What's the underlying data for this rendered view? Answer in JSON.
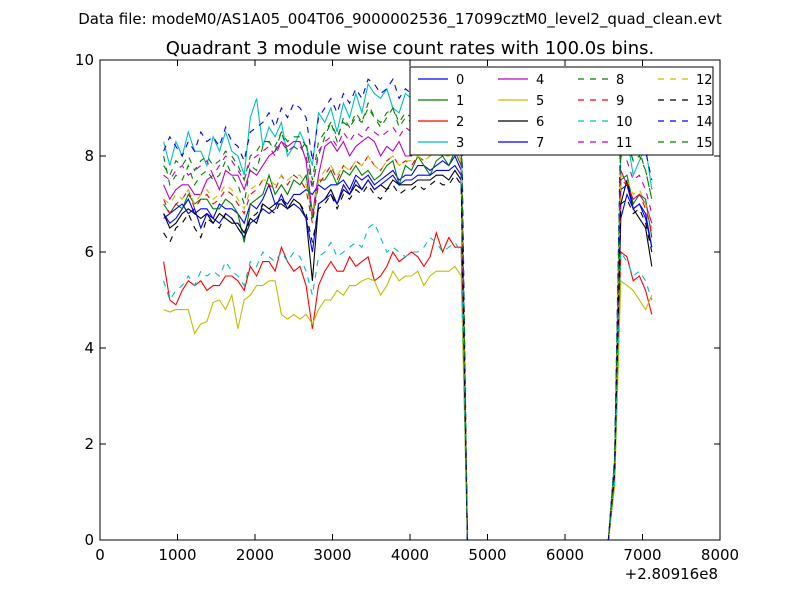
{
  "suptitle": "Data file: modeM0/AS1A05_004T06_9000002536_17099cztM0_level2_quad_clean.evt",
  "chart_data": {
    "type": "line",
    "title": "Quadrant 3 module wise count rates with 100.0s bins.",
    "xlabel": "",
    "ylabel": "",
    "x_offset_label": "+2.80916e8",
    "xlim": [
      0,
      8000
    ],
    "ylim": [
      0,
      10
    ],
    "x_ticks": [
      0,
      1000,
      2000,
      3000,
      4000,
      5000,
      6000,
      7000,
      8000
    ],
    "y_ticks": [
      0,
      2,
      4,
      6,
      8,
      10
    ],
    "grid": false,
    "legend_placement": "top-right",
    "legend_columns": 4,
    "x": [
      820,
      900,
      980,
      1060,
      1140,
      1220,
      1300,
      1380,
      1460,
      1540,
      1620,
      1700,
      1780,
      1860,
      1940,
      2020,
      2100,
      2180,
      2260,
      2340,
      2420,
      2500,
      2580,
      2660,
      2740,
      2820,
      2900,
      2980,
      3060,
      3140,
      3220,
      3300,
      3380,
      3460,
      3540,
      3620,
      3700,
      3780,
      3860,
      3940,
      4020,
      4100,
      4180,
      4260,
      4340,
      4420,
      4500,
      4580,
      4660,
      4740,
      6560,
      6640,
      6720,
      6800,
      6880,
      6960,
      7040,
      7120
    ],
    "series": [
      {
        "name": "0",
        "color": "#0000ff",
        "dash": "solid",
        "values": [
          6.8,
          6.6,
          6.7,
          6.9,
          7.1,
          6.8,
          6.9,
          6.9,
          6.7,
          7.0,
          6.9,
          6.9,
          6.8,
          6.6,
          7.0,
          6.9,
          7.1,
          7.4,
          7.0,
          7.1,
          7.0,
          7.2,
          7.2,
          7.3,
          7.2,
          7.4,
          7.3,
          7.4,
          7.4,
          7.5,
          7.3,
          7.6,
          7.5,
          7.6,
          7.4,
          7.5,
          7.6,
          7.7,
          7.5,
          7.6,
          7.6,
          7.8,
          7.8,
          7.7,
          7.8,
          7.9,
          7.8,
          8.0,
          7.7,
          0.0,
          0.0,
          1.5,
          6.7,
          7.2,
          6.9,
          7.0,
          6.7,
          6.1
        ]
      },
      {
        "name": "1",
        "color": "#008000",
        "dash": "solid",
        "values": [
          7.0,
          6.8,
          7.0,
          6.9,
          7.2,
          7.0,
          7.1,
          7.1,
          6.9,
          6.9,
          7.1,
          7.0,
          6.8,
          6.2,
          7.0,
          7.1,
          7.2,
          7.6,
          7.2,
          7.4,
          7.2,
          7.5,
          7.4,
          7.6,
          6.7,
          7.5,
          7.5,
          7.7,
          7.4,
          7.7,
          7.6,
          7.8,
          7.6,
          7.7,
          7.5,
          7.6,
          7.8,
          7.9,
          7.4,
          7.8,
          7.7,
          8.0,
          7.8,
          7.6,
          7.9,
          8.0,
          7.8,
          8.1,
          7.8,
          0.0,
          0.0,
          1.5,
          7.5,
          7.6,
          7.0,
          7.2,
          7.1,
          6.3
        ]
      },
      {
        "name": "2",
        "color": "#ff0000",
        "dash": "solid",
        "values": [
          5.8,
          5.0,
          4.9,
          5.2,
          5.4,
          5.3,
          5.4,
          5.2,
          5.3,
          5.3,
          5.5,
          5.5,
          5.4,
          5.2,
          5.7,
          5.5,
          5.8,
          5.8,
          5.6,
          6.1,
          5.8,
          5.6,
          5.7,
          5.3,
          4.4,
          5.3,
          5.6,
          5.8,
          5.6,
          5.6,
          5.9,
          5.7,
          5.8,
          5.9,
          5.4,
          5.5,
          5.7,
          6.0,
          5.8,
          5.9,
          6.0,
          5.9,
          5.7,
          5.9,
          6.4,
          6.0,
          6.3,
          6.1,
          6.1,
          0.0,
          0.0,
          1.2,
          6.0,
          5.9,
          5.4,
          5.5,
          5.2,
          4.7
        ]
      },
      {
        "name": "3",
        "color": "#00bfbf",
        "dash": "solid",
        "values": [
          8.3,
          7.8,
          8.3,
          8.0,
          8.5,
          8.1,
          8.1,
          7.8,
          8.4,
          8.1,
          8.5,
          8.1,
          8.0,
          7.6,
          8.8,
          9.2,
          8.2,
          8.6,
          8.4,
          8.7,
          8.0,
          8.2,
          8.5,
          8.2,
          7.8,
          8.9,
          8.7,
          9.0,
          8.5,
          9.1,
          8.8,
          9.3,
          8.9,
          9.5,
          9.3,
          9.2,
          9.4,
          9.0,
          8.9,
          9.3,
          9.2,
          8.8,
          8.7,
          9.0,
          8.8,
          8.6,
          8.7,
          8.9,
          8.5,
          0.0,
          0.0,
          1.7,
          8.1,
          8.4,
          7.6,
          7.9,
          8.2,
          7.3
        ]
      },
      {
        "name": "4",
        "color": "#bf00bf",
        "dash": "solid",
        "values": [
          7.4,
          7.1,
          7.3,
          7.4,
          7.4,
          7.2,
          7.2,
          7.5,
          7.6,
          7.3,
          7.7,
          7.6,
          7.6,
          7.3,
          7.7,
          7.6,
          7.8,
          8.0,
          8.1,
          8.3,
          8.2,
          8.3,
          8.3,
          7.9,
          6.8,
          7.6,
          8.2,
          8.3,
          8.1,
          8.3,
          8.0,
          8.2,
          8.3,
          8.4,
          8.3,
          8.0,
          8.2,
          8.1,
          8.3,
          8.0,
          8.0,
          8.2,
          8.2,
          8.3,
          8.4,
          8.2,
          8.3,
          8.5,
          8.0,
          0.0,
          0.0,
          1.6,
          7.7,
          7.4,
          7.1,
          7.2,
          7.0,
          6.6
        ]
      },
      {
        "name": "5",
        "color": "#bfbf00",
        "dash": "solid",
        "values": [
          4.8,
          4.75,
          4.8,
          4.8,
          4.8,
          4.3,
          4.5,
          4.55,
          4.95,
          5.0,
          4.8,
          5.1,
          4.4,
          5.0,
          5.1,
          5.3,
          5.3,
          5.4,
          5.4,
          4.7,
          4.6,
          4.7,
          4.6,
          4.7,
          4.5,
          4.8,
          5.0,
          5.0,
          5.2,
          5.1,
          5.3,
          5.3,
          5.4,
          5.45,
          5.4,
          5.1,
          5.3,
          5.6,
          5.4,
          5.5,
          5.5,
          5.6,
          5.3,
          5.5,
          5.6,
          5.6,
          5.6,
          5.7,
          5.5,
          0.0,
          0.0,
          1.1,
          5.4,
          5.3,
          5.2,
          5.0,
          4.8,
          5.1
        ]
      },
      {
        "name": "6",
        "color": "#000000",
        "dash": "solid",
        "values": [
          6.8,
          6.5,
          6.6,
          6.8,
          6.9,
          6.8,
          6.7,
          6.8,
          6.6,
          6.8,
          6.7,
          6.6,
          6.6,
          6.4,
          6.7,
          6.6,
          7.0,
          6.9,
          7.0,
          7.0,
          6.9,
          7.1,
          7.0,
          6.7,
          5.4,
          7.0,
          7.1,
          7.3,
          7.0,
          7.3,
          7.2,
          7.4,
          7.3,
          7.5,
          7.3,
          7.4,
          7.3,
          7.5,
          7.4,
          7.4,
          7.4,
          7.5,
          7.5,
          7.5,
          7.6,
          7.6,
          7.5,
          7.7,
          7.5,
          0.0,
          0.0,
          1.4,
          7.0,
          7.5,
          6.9,
          6.7,
          6.5,
          5.7
        ]
      },
      {
        "name": "7",
        "color": "#0000ff",
        "dash": "solid",
        "values": [
          6.7,
          6.8,
          6.9,
          7.0,
          6.8,
          6.9,
          6.5,
          6.8,
          6.7,
          6.6,
          6.8,
          6.7,
          6.5,
          6.3,
          6.6,
          6.7,
          6.9,
          6.8,
          6.9,
          7.2,
          6.9,
          7.0,
          6.9,
          6.7,
          6.0,
          7.0,
          7.1,
          7.2,
          7.0,
          7.4,
          7.2,
          7.5,
          7.3,
          7.5,
          7.3,
          7.4,
          7.5,
          7.6,
          7.4,
          7.5,
          7.5,
          7.6,
          7.6,
          7.6,
          7.7,
          7.7,
          7.7,
          7.8,
          7.6,
          0.0,
          0.0,
          1.4,
          7.3,
          7.4,
          6.9,
          7.0,
          6.8,
          6.1
        ]
      },
      {
        "name": "8",
        "color": "#008000",
        "dash": "dashed",
        "values": [
          8.0,
          7.4,
          7.6,
          7.5,
          7.8,
          7.4,
          7.6,
          7.7,
          7.5,
          7.6,
          7.9,
          7.6,
          7.4,
          7.0,
          7.8,
          7.7,
          8.2,
          8.3,
          8.1,
          8.5,
          8.1,
          8.2,
          8.1,
          8.3,
          7.4,
          8.0,
          8.4,
          8.7,
          8.3,
          8.8,
          8.6,
          8.9,
          8.7,
          9.1,
          8.8,
          8.7,
          8.9,
          9.0,
          8.6,
          8.8,
          8.7,
          8.9,
          8.7,
          8.9,
          9.0,
          8.8,
          8.9,
          9.1,
          8.7,
          0.0,
          0.0,
          1.6,
          8.4,
          8.3,
          7.9,
          8.0,
          7.7,
          7.1
        ]
      },
      {
        "name": "9",
        "color": "#ff0000",
        "dash": "dashed",
        "values": [
          7.1,
          6.8,
          7.0,
          7.1,
          7.3,
          6.9,
          7.1,
          7.2,
          7.0,
          7.1,
          7.3,
          7.2,
          7.0,
          6.8,
          7.2,
          7.3,
          7.5,
          7.4,
          7.3,
          7.6,
          7.4,
          7.6,
          7.5,
          7.3,
          6.6,
          7.4,
          7.6,
          7.8,
          7.5,
          7.8,
          7.7,
          7.9,
          7.8,
          8.0,
          7.8,
          7.7,
          7.9,
          8.0,
          7.8,
          7.9,
          7.8,
          8.0,
          7.9,
          8.0,
          8.1,
          8.0,
          8.0,
          8.2,
          7.9,
          0.0,
          0.0,
          1.5,
          7.5,
          7.4,
          7.1,
          7.2,
          6.9,
          6.4
        ]
      },
      {
        "name": "10",
        "color": "#00bfbf",
        "dash": "dashed",
        "values": [
          5.4,
          5.0,
          5.2,
          5.3,
          5.5,
          5.3,
          5.6,
          5.5,
          5.6,
          5.5,
          5.8,
          5.6,
          5.5,
          5.3,
          5.8,
          5.7,
          6.0,
          5.9,
          5.8,
          6.0,
          5.8,
          6.0,
          5.9,
          5.6,
          5.1,
          5.9,
          6.0,
          6.2,
          5.9,
          6.0,
          6.1,
          6.2,
          6.1,
          6.5,
          6.6,
          6.3,
          6.0,
          6.1,
          6.0,
          5.9,
          6.0,
          6.0,
          6.1,
          6.3,
          6.2,
          6.0,
          6.1,
          6.2,
          6.0,
          0.0,
          0.0,
          1.2,
          6.0,
          5.8,
          5.5,
          5.6,
          5.4,
          5.0
        ]
      },
      {
        "name": "11",
        "color": "#bf00bf",
        "dash": "dashed",
        "values": [
          7.6,
          7.5,
          7.7,
          7.8,
          7.6,
          7.7,
          7.8,
          7.9,
          7.6,
          7.8,
          8.0,
          7.9,
          7.7,
          7.5,
          7.9,
          8.0,
          8.1,
          8.2,
          8.0,
          8.3,
          8.1,
          8.2,
          8.2,
          8.0,
          7.3,
          8.1,
          8.3,
          8.4,
          8.2,
          8.5,
          8.3,
          8.5,
          8.4,
          8.6,
          8.5,
          8.4,
          8.5,
          8.6,
          8.4,
          8.6,
          8.5,
          8.6,
          8.5,
          8.6,
          8.7,
          8.6,
          8.6,
          8.8,
          8.5,
          0.0,
          0.0,
          1.6,
          8.0,
          7.9,
          7.5,
          7.6,
          7.3,
          6.8
        ]
      },
      {
        "name": "12",
        "color": "#bfbf00",
        "dash": "dashed",
        "values": [
          7.1,
          7.0,
          7.2,
          7.1,
          7.3,
          7.0,
          7.2,
          7.3,
          7.1,
          7.2,
          7.4,
          7.3,
          7.1,
          6.9,
          7.3,
          7.4,
          7.5,
          7.5,
          7.4,
          7.6,
          7.5,
          7.6,
          7.6,
          7.4,
          6.8,
          7.5,
          7.7,
          7.8,
          7.6,
          7.8,
          7.7,
          7.9,
          7.8,
          8.0,
          7.8,
          7.7,
          7.9,
          8.0,
          7.8,
          7.9,
          7.9,
          8.0,
          7.9,
          8.0,
          8.1,
          8.0,
          8.0,
          8.2,
          7.9,
          0.0,
          0.0,
          1.5,
          7.6,
          7.5,
          7.2,
          7.3,
          7.0,
          6.5
        ]
      },
      {
        "name": "13",
        "color": "#000000",
        "dash": "dashed",
        "values": [
          6.4,
          6.2,
          6.5,
          6.6,
          6.8,
          6.5,
          6.3,
          6.7,
          6.6,
          6.5,
          6.8,
          6.7,
          6.5,
          6.3,
          6.7,
          6.8,
          7.0,
          6.9,
          6.8,
          7.1,
          6.9,
          7.0,
          7.0,
          6.8,
          6.2,
          6.9,
          7.0,
          7.2,
          6.9,
          7.2,
          7.1,
          7.3,
          7.2,
          7.4,
          7.2,
          7.1,
          7.3,
          7.4,
          7.2,
          7.3,
          7.3,
          7.4,
          7.3,
          7.4,
          7.5,
          7.4,
          7.4,
          7.6,
          7.4,
          0.0,
          0.0,
          1.4,
          7.0,
          7.1,
          6.8,
          6.9,
          6.6,
          6.0
        ]
      },
      {
        "name": "14",
        "color": "#0000ff",
        "dash": "dashed",
        "values": [
          8.1,
          8.4,
          8.2,
          8.0,
          8.3,
          8.1,
          8.5,
          8.3,
          8.4,
          8.2,
          8.6,
          8.3,
          8.2,
          7.9,
          8.5,
          8.6,
          8.7,
          8.9,
          8.6,
          9.0,
          8.8,
          9.1,
          9.0,
          8.8,
          7.9,
          8.8,
          9.0,
          9.2,
          8.9,
          9.3,
          9.1,
          9.4,
          9.2,
          9.6,
          9.5,
          9.3,
          9.4,
          9.6,
          9.2,
          9.4,
          9.3,
          9.5,
          9.3,
          9.5,
          9.6,
          9.4,
          9.5,
          9.8,
          9.4,
          0.0,
          0.0,
          1.7,
          8.8,
          8.6,
          8.3,
          8.4,
          8.1,
          7.5
        ]
      },
      {
        "name": "15",
        "color": "#008000",
        "dash": "dashed",
        "values": [
          7.8,
          7.6,
          7.9,
          7.8,
          8.0,
          7.7,
          7.9,
          8.0,
          7.8,
          7.9,
          8.1,
          8.0,
          7.8,
          7.5,
          8.0,
          8.1,
          8.3,
          8.3,
          8.2,
          8.5,
          8.3,
          8.4,
          8.4,
          8.2,
          7.5,
          8.3,
          8.5,
          8.7,
          8.4,
          8.7,
          8.6,
          8.8,
          8.7,
          9.0,
          8.8,
          8.6,
          8.8,
          9.0,
          8.7,
          8.9,
          8.8,
          9.0,
          8.9,
          9.0,
          9.1,
          8.9,
          9.0,
          9.2,
          8.9,
          0.0,
          0.0,
          1.6,
          8.4,
          8.3,
          7.9,
          8.1,
          7.7,
          7.1
        ]
      }
    ]
  }
}
